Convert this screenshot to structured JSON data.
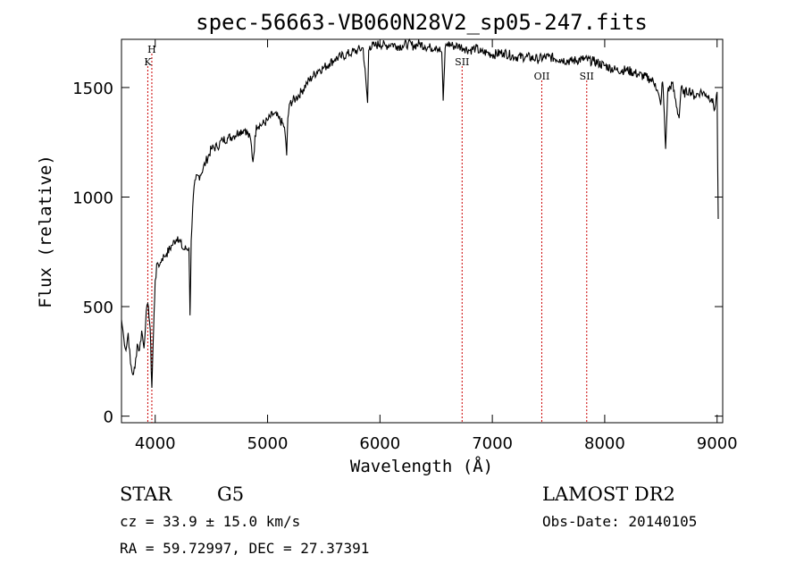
{
  "chart_data": {
    "type": "line",
    "title": "spec-56663-VB060N28V2_sp05-247.fits",
    "xlabel": "Wavelength (Å)",
    "ylabel": "Flux (relative)",
    "xlim": [
      3700,
      9050
    ],
    "ylim": [
      -30,
      1720
    ],
    "xticks": [
      4000,
      5000,
      6000,
      7000,
      8000,
      9000
    ],
    "yticks": [
      0,
      500,
      1000,
      1500
    ],
    "line_color": "#000000",
    "marker_color": "#cc0000",
    "series": [
      {
        "x": [
          3700,
          3720,
          3740,
          3760,
          3780,
          3800,
          3820,
          3840,
          3860,
          3880,
          3900,
          3920,
          3940,
          3955,
          3970,
          3985,
          4000,
          4020,
          4040,
          4060,
          4080,
          4100,
          4150,
          4200,
          4250,
          4300,
          4310,
          4320,
          4340,
          4360,
          4400,
          4450,
          4500,
          4550,
          4600,
          4650,
          4700,
          4750,
          4800,
          4850,
          4870,
          4900,
          4950,
          5000,
          5050,
          5100,
          5150,
          5170,
          5180,
          5200,
          5250,
          5300,
          5350,
          5400,
          5450,
          5500,
          5550,
          5600,
          5650,
          5700,
          5750,
          5800,
          5850,
          5890,
          5900,
          5910,
          5950,
          6000,
          6050,
          6100,
          6150,
          6200,
          6250,
          6300,
          6350,
          6400,
          6450,
          6500,
          6550,
          6563,
          6580,
          6600,
          6650,
          6700,
          6750,
          6800,
          6850,
          6900,
          6950,
          7000,
          7100,
          7200,
          7300,
          7400,
          7500,
          7600,
          7700,
          7800,
          7900,
          8000,
          8100,
          8200,
          8300,
          8400,
          8450,
          8498,
          8510,
          8520,
          8542,
          8560,
          8600,
          8662,
          8680,
          8700,
          8750,
          8800,
          8850,
          8900,
          8950,
          8980,
          9000,
          9010
        ],
        "y": [
          440,
          360,
          300,
          380,
          240,
          190,
          220,
          330,
          300,
          390,
          310,
          480,
          500,
          400,
          130,
          390,
          620,
          700,
          690,
          720,
          730,
          740,
          780,
          820,
          760,
          770,
          460,
          800,
          1010,
          1080,
          1100,
          1160,
          1220,
          1230,
          1260,
          1270,
          1280,
          1300,
          1310,
          1260,
          1160,
          1330,
          1330,
          1350,
          1380,
          1360,
          1320,
          1190,
          1360,
          1430,
          1450,
          1480,
          1520,
          1550,
          1580,
          1590,
          1610,
          1630,
          1640,
          1650,
          1660,
          1670,
          1680,
          1430,
          1670,
          1690,
          1690,
          1700,
          1690,
          1700,
          1690,
          1690,
          1700,
          1690,
          1700,
          1690,
          1680,
          1690,
          1660,
          1440,
          1680,
          1700,
          1690,
          1690,
          1680,
          1670,
          1680,
          1660,
          1660,
          1650,
          1660,
          1640,
          1640,
          1630,
          1640,
          1630,
          1620,
          1630,
          1620,
          1600,
          1580,
          1580,
          1560,
          1540,
          1520,
          1420,
          1520,
          1500,
          1220,
          1480,
          1520,
          1360,
          1500,
          1470,
          1490,
          1460,
          1480,
          1470,
          1450,
          1400,
          1480,
          900
        ]
      }
    ],
    "line_markers": [
      {
        "label": "H",
        "x": 3970
      },
      {
        "label": "K",
        "x": 3934
      },
      {
        "label": "SII",
        "x": 6731
      },
      {
        "label": "OII",
        "x": 7440
      },
      {
        "label": "SII",
        "x": 7840
      }
    ]
  },
  "footer": {
    "object_class": "STAR",
    "subclass": "G5",
    "cz_text": "cz = 33.9 ± 15.0 km/s",
    "coords_text": "RA =  59.72997, DEC =  27.37391",
    "survey": "LAMOST DR2",
    "obs_date": "Obs-Date: 20140105"
  }
}
